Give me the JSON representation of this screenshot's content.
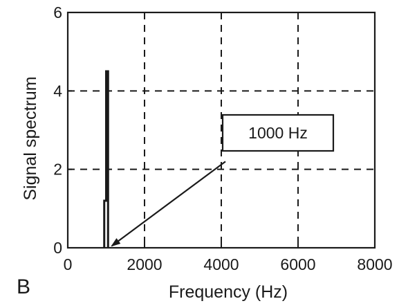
{
  "panel_label": "B",
  "colors": {
    "ink": "#1a1a1a",
    "grid": "#1a1a1a",
    "background": "#ffffff"
  },
  "chart_data": {
    "type": "line",
    "xlabel": "Frequency (Hz)",
    "ylabel": "Signal spectrum",
    "xlim": [
      0,
      8000
    ],
    "ylim": [
      0,
      6
    ],
    "xticks": [
      0,
      2000,
      4000,
      6000,
      8000
    ],
    "yticks": [
      0,
      2,
      4,
      6
    ],
    "grid": "dashed",
    "series": [
      {
        "x": [
          950,
          950,
          1000,
          1000,
          1050,
          1050
        ],
        "y": [
          0,
          1.2,
          1.2,
          4.5,
          4.5,
          0
        ]
      }
    ],
    "annotations": [
      {
        "text": "1000 Hz",
        "arrow_from": [
          4000,
          2.2
        ],
        "arrow_to": [
          1150,
          0.05
        ]
      }
    ]
  }
}
